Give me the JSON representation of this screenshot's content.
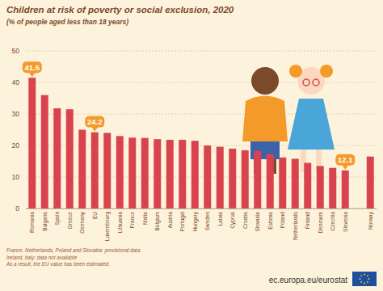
{
  "chart_data": {
    "type": "bar",
    "title": "Children at risk of poverty or social exclusion, 2020",
    "subtitle": "(% of people aged less than 18 years)",
    "categories": [
      "Romania",
      "Bulgaria",
      "Spain",
      "Greece",
      "Germany",
      "EU",
      "Luxembourg",
      "Lithuania",
      "France",
      "Malta",
      "Belgium",
      "Austria",
      "Portugal",
      "Hungary",
      "Sweden",
      "Latvia",
      "Cyprus",
      "Croatia",
      "Slovakia",
      "Estonia",
      "Poland",
      "Netherlands",
      "Finland",
      "Denmark",
      "Czechia",
      "Slovenia",
      null,
      "Norway"
    ],
    "values": [
      41.5,
      36,
      31.8,
      31.5,
      25,
      24.2,
      24,
      23,
      22.5,
      22.4,
      22,
      21.8,
      21.8,
      21.5,
      20,
      19.6,
      19,
      18.5,
      18.3,
      17.3,
      16.2,
      15.8,
      14.5,
      13.5,
      12.9,
      12.1,
      null,
      16.5
    ],
    "color": "#d9434e",
    "ylim": [
      0,
      50
    ],
    "yticks": [
      0,
      10,
      20,
      30,
      40,
      50
    ],
    "grid": true,
    "annotations": [
      {
        "category": "Romania",
        "text": "41.5"
      },
      {
        "category": "EU",
        "text": "24.2"
      },
      {
        "category": "Slovenia",
        "text": "12.1"
      }
    ],
    "notes": [
      "France, Netherlands, Poland and Slovakia: provisional data",
      "Ireland, Italy: data not available",
      "As a result, the EU value has been estimated."
    ],
    "source": "ec.europa.eu/eurostat"
  }
}
